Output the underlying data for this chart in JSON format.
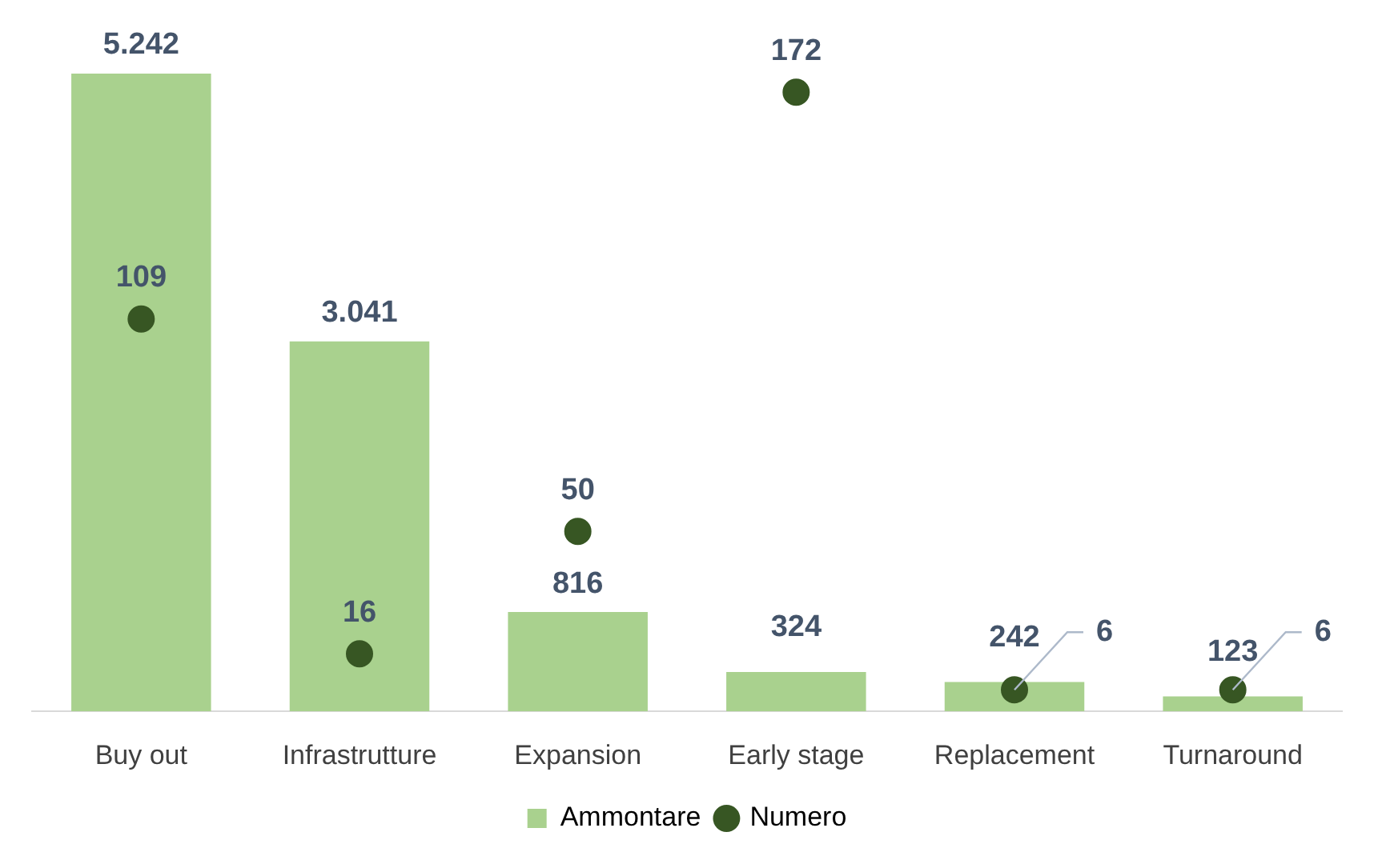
{
  "chart_data": {
    "type": "bar",
    "categories": [
      "Buy out",
      "Infrastrutture",
      "Expansion",
      "Early stage",
      "Replacement",
      "Turnaround"
    ],
    "series": [
      {
        "name": "Ammontare",
        "color": "#a9d18e",
        "values": [
          5242,
          3041,
          816,
          324,
          242,
          123
        ],
        "value_labels": [
          "5.242",
          "3.041",
          "816",
          "324",
          "242",
          "123"
        ]
      },
      {
        "name": "Numero",
        "type": "scatter",
        "axis": "y2",
        "color": "#375623",
        "values": [
          109,
          16,
          50,
          172,
          6,
          6
        ],
        "value_labels": [
          "109",
          "16",
          "50",
          "172",
          "6",
          "6"
        ]
      }
    ],
    "legend": "bottom",
    "grid": false,
    "tick_labels": "x"
  }
}
